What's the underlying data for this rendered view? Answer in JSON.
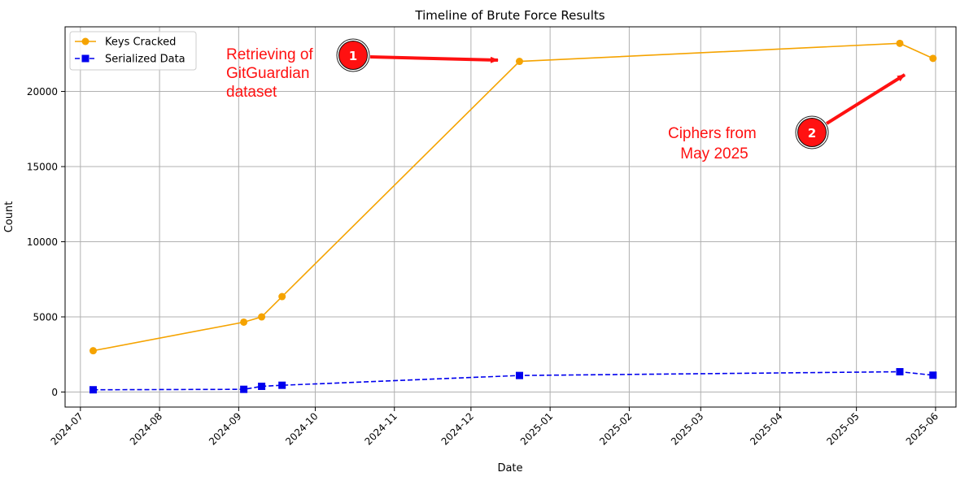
{
  "chart_data": {
    "type": "line",
    "title": "Timeline of Brute Force Results",
    "xlabel": "Date",
    "ylabel": "Count",
    "x_axis_type": "date",
    "xlim": [
      "2024-06-25",
      "2025-06-09"
    ],
    "ylim": [
      -1000,
      24300
    ],
    "x_ticks": [
      "2024-07",
      "2024-08",
      "2024-09",
      "2024-10",
      "2024-11",
      "2024-12",
      "2025-01",
      "2025-02",
      "2025-03",
      "2025-04",
      "2025-05",
      "2025-06"
    ],
    "x_tick_dates": [
      "2024-07-01",
      "2024-08-01",
      "2024-09-01",
      "2024-10-01",
      "2024-11-01",
      "2024-12-01",
      "2025-01-01",
      "2025-02-01",
      "2025-03-01",
      "2025-04-01",
      "2025-05-01",
      "2025-06-01"
    ],
    "y_ticks": [
      0,
      5000,
      10000,
      15000,
      20000
    ],
    "grid": true,
    "legend_position": "top-left",
    "series": [
      {
        "name": "Keys Cracked",
        "color": "#f5a300",
        "marker": "circle",
        "line_style": "solid",
        "points": [
          {
            "x": "2024-07-06",
            "y": 2750
          },
          {
            "x": "2024-09-03",
            "y": 4650
          },
          {
            "x": "2024-09-10",
            "y": 5000
          },
          {
            "x": "2024-09-18",
            "y": 6350
          },
          {
            "x": "2024-12-20",
            "y": 22000
          },
          {
            "x": "2025-05-18",
            "y": 23200
          },
          {
            "x": "2025-05-31",
            "y": 22200
          }
        ]
      },
      {
        "name": "Serialized Data",
        "color": "#0000ee",
        "marker": "square",
        "line_style": "dashed",
        "points": [
          {
            "x": "2024-07-06",
            "y": 150
          },
          {
            "x": "2024-09-03",
            "y": 180
          },
          {
            "x": "2024-09-10",
            "y": 380
          },
          {
            "x": "2024-09-18",
            "y": 450
          },
          {
            "x": "2024-12-20",
            "y": 1100
          },
          {
            "x": "2025-05-18",
            "y": 1350
          },
          {
            "x": "2025-05-31",
            "y": 1120
          }
        ]
      }
    ],
    "annotations": [
      {
        "label": "1",
        "text_lines": [
          "Retrieving of",
          "GitGuardian",
          "dataset"
        ],
        "color": "#ff1111"
      },
      {
        "label": "2",
        "text_lines": [
          "Ciphers from",
          "May 2025"
        ],
        "color": "#ff1111"
      }
    ]
  }
}
